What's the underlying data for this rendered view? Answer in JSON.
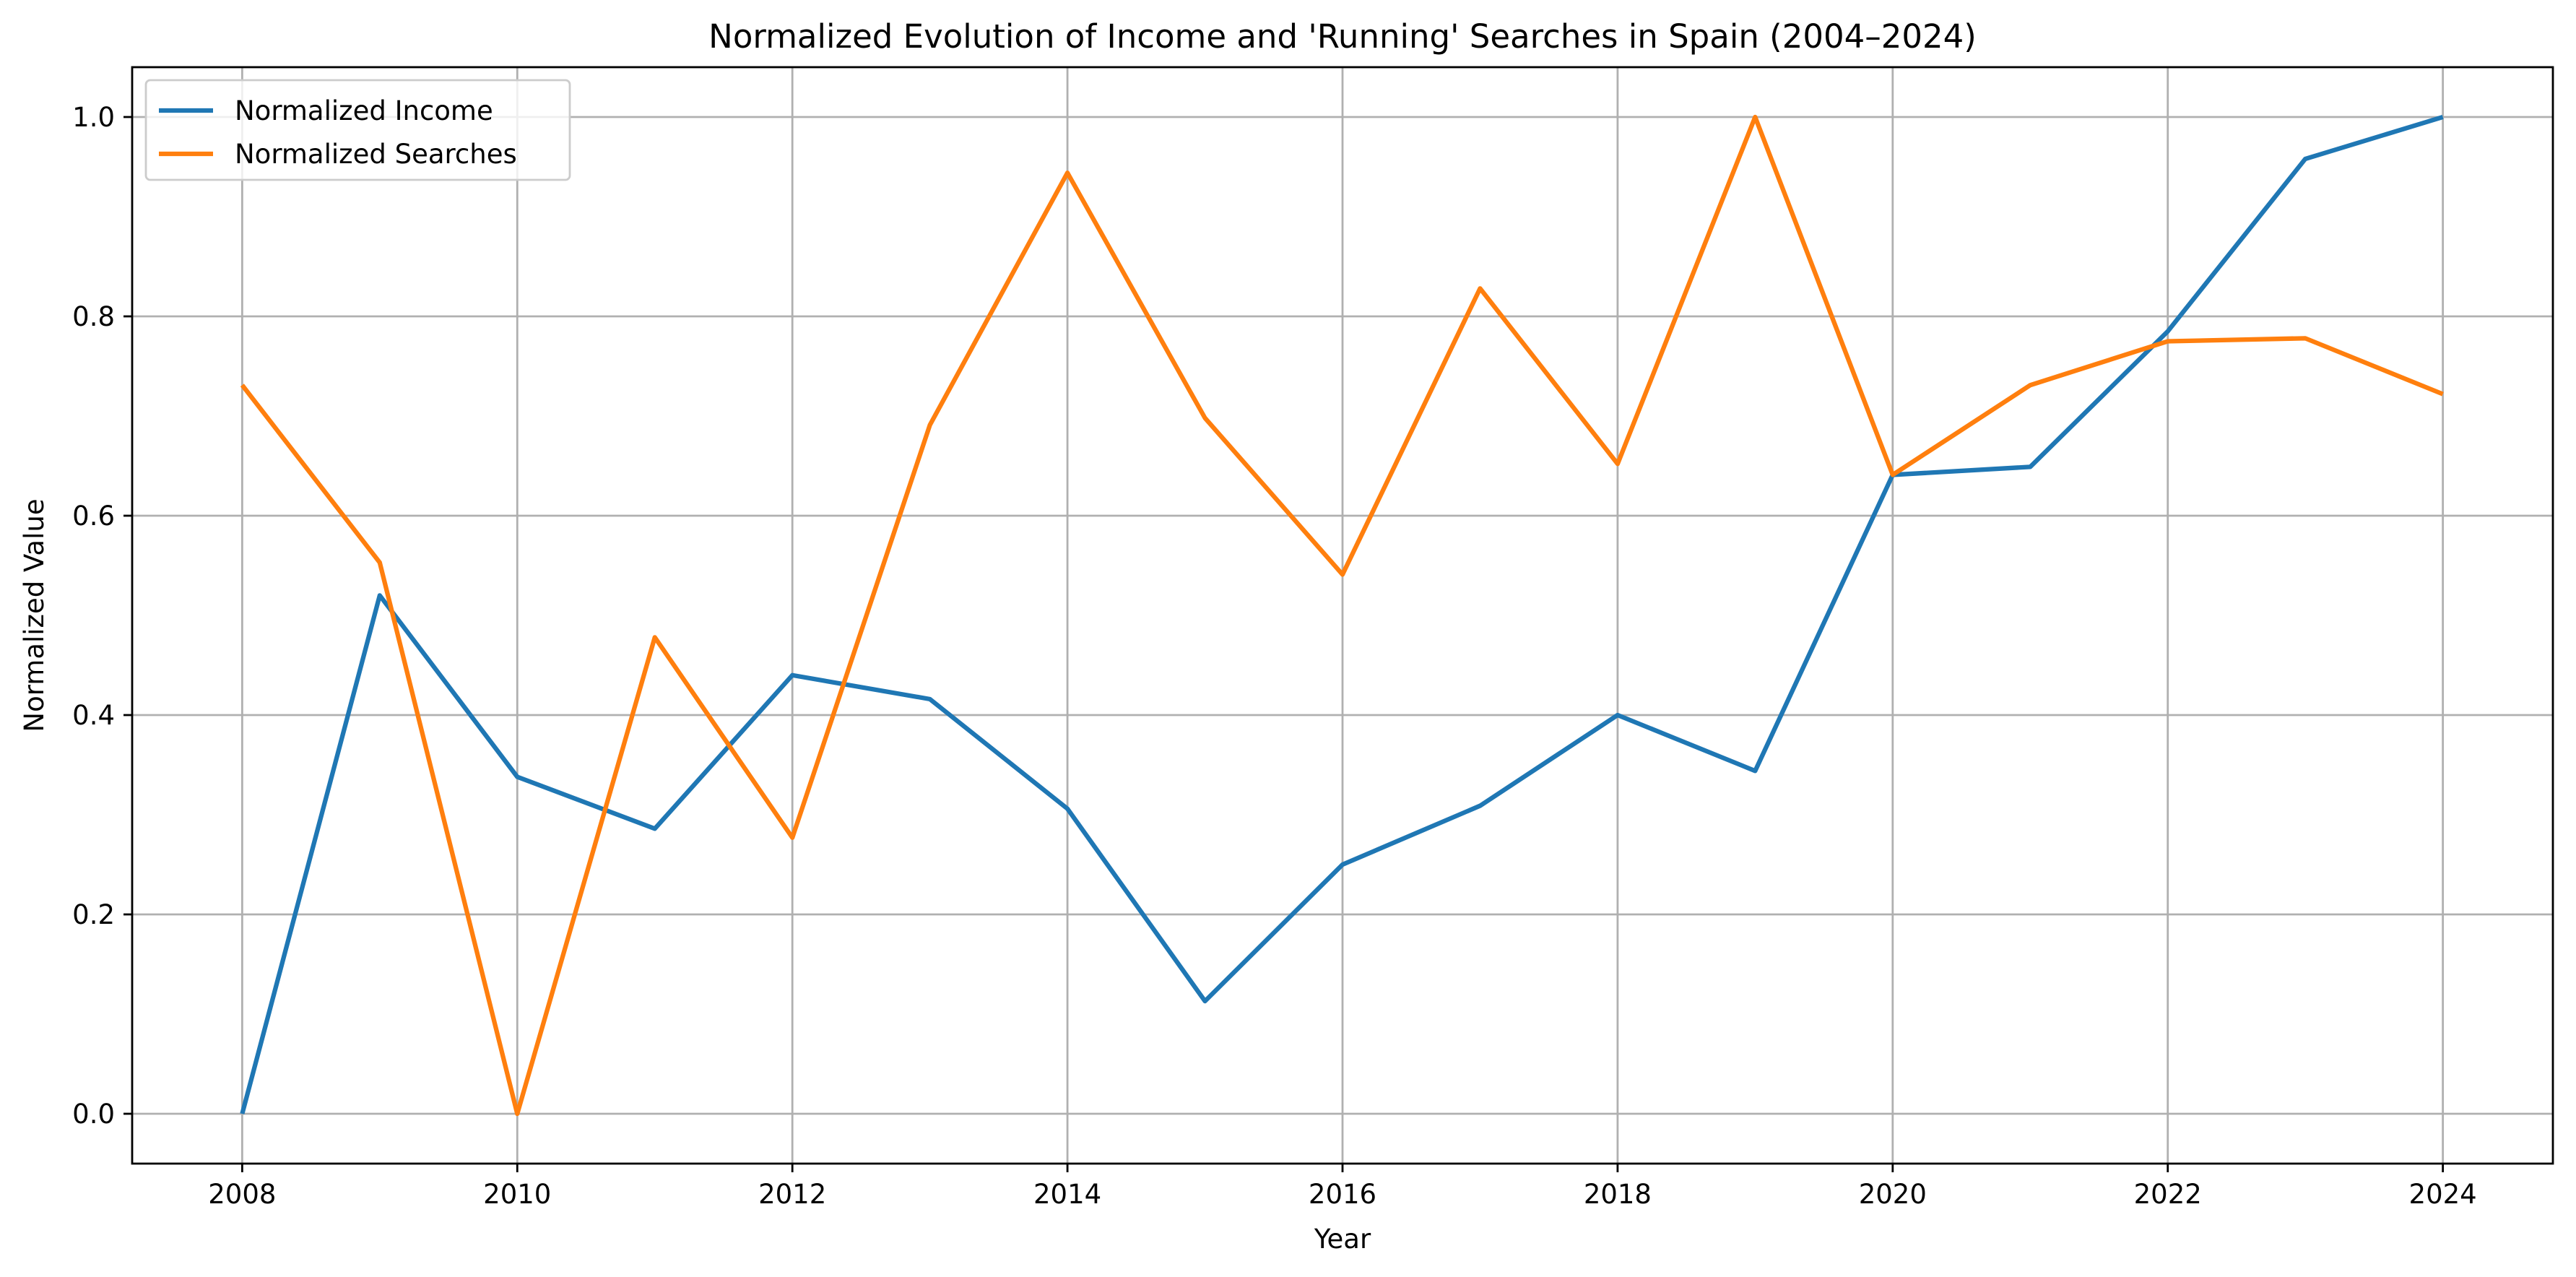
{
  "chart_data": {
    "type": "line",
    "title": "Normalized Evolution of Income and 'Running' Searches in Spain (2004–2024)",
    "xlabel": "Year",
    "ylabel": "Normalized Value",
    "x": [
      2008,
      2009,
      2010,
      2011,
      2012,
      2013,
      2014,
      2015,
      2016,
      2017,
      2018,
      2019,
      2020,
      2021,
      2022,
      2023,
      2024
    ],
    "xlim": [
      2007.2,
      2024.8
    ],
    "ylim": [
      -0.05,
      1.05
    ],
    "x_ticks": [
      2008,
      2010,
      2012,
      2014,
      2016,
      2018,
      2020,
      2022,
      2024
    ],
    "y_ticks": [
      0.0,
      0.2,
      0.4,
      0.6,
      0.8,
      1.0
    ],
    "y_tick_labels": [
      "0.0",
      "0.2",
      "0.4",
      "0.6",
      "0.8",
      "1.0"
    ],
    "grid": true,
    "legend_position": "top-left",
    "series": [
      {
        "name": "Normalized Income",
        "color": "#1f77b4",
        "values": [
          0.0,
          0.52,
          0.338,
          0.286,
          0.44,
          0.416,
          0.306,
          0.113,
          0.25,
          0.309,
          0.4,
          0.344,
          0.641,
          0.649,
          0.785,
          0.958,
          1.0
        ]
      },
      {
        "name": "Normalized Searches",
        "color": "#ff7f0e",
        "values": [
          0.731,
          0.553,
          0.0,
          0.478,
          0.277,
          0.691,
          0.944,
          0.698,
          0.541,
          0.828,
          0.652,
          1.0,
          0.641,
          0.731,
          0.775,
          0.778,
          0.722
        ]
      }
    ]
  }
}
